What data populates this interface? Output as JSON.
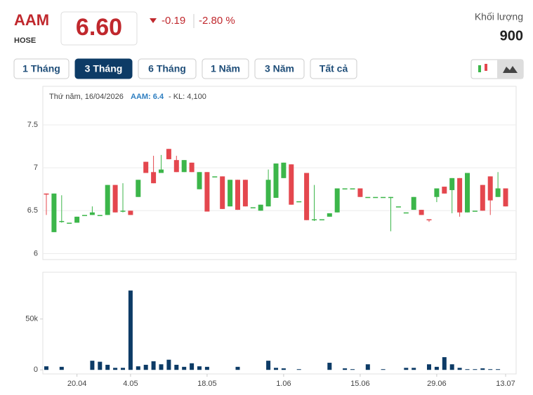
{
  "header": {
    "symbol": "AAM",
    "exchange": "HOSE",
    "price": "6.60",
    "change": "-0.19",
    "change_percent": "-2.80 %",
    "volume_label": "Khối lượng",
    "volume": "900"
  },
  "tabs": [
    "1 Tháng",
    "3 Tháng",
    "6 Tháng",
    "1 Năm",
    "3 Năm",
    "Tất cả"
  ],
  "active_tab": "3 Tháng",
  "tooltip": {
    "date": "Thứ năm, 16/04/2026",
    "symbol_price": "AAM: 6.4",
    "volume": "- KL: 4,100"
  },
  "chart_data": [
    {
      "type": "candlestick",
      "up_color": "#3cb64a",
      "down_color": "#e4474e",
      "categories": [
        null,
        null,
        null,
        null,
        "20.04",
        null,
        null,
        null,
        null,
        null,
        null,
        "4.05",
        null,
        null,
        null,
        null,
        null,
        null,
        null,
        null,
        null,
        "18.05",
        null,
        null,
        null,
        null,
        null,
        null,
        null,
        null,
        null,
        "1.06",
        null,
        null,
        null,
        null,
        null,
        null,
        null,
        null,
        null,
        "15.06",
        null,
        null,
        null,
        null,
        null,
        null,
        null,
        null,
        null,
        "29.06",
        null,
        null,
        null,
        null,
        null,
        null,
        null,
        null,
        "13.07"
      ],
      "open": [
        6.7,
        6.25,
        6.38,
        6.36,
        6.36,
        6.45,
        6.45,
        6.45,
        6.45,
        6.8,
        6.5,
        6.5,
        6.66,
        7.07,
        6.95,
        6.94,
        7.22,
        7.09,
        6.95,
        7.06,
        6.75,
        6.95,
        6.9,
        6.9,
        6.55,
        6.86,
        6.86,
        6.54,
        6.5,
        6.55,
        6.65,
        6.88,
        7.04,
        6.61,
        6.94,
        6.4,
        6.4,
        6.43,
        6.48,
        6.76,
        6.76,
        6.76,
        6.66,
        6.66,
        6.66,
        6.66,
        6.55,
        6.48,
        6.51,
        6.51,
        6.4,
        6.66,
        6.78,
        6.74,
        6.88,
        6.48,
        6.5,
        6.8,
        6.9,
        6.66,
        6.76
      ],
      "high": [
        6.7,
        6.7,
        6.68,
        6.36,
        6.43,
        6.45,
        6.55,
        6.45,
        6.8,
        6.8,
        6.82,
        6.5,
        6.86,
        7.07,
        7.14,
        7.15,
        7.22,
        7.14,
        7.09,
        7.06,
        6.95,
        6.95,
        6.9,
        6.9,
        6.86,
        6.86,
        6.86,
        6.54,
        6.57,
        6.98,
        7.05,
        7.06,
        7.04,
        6.61,
        6.94,
        6.8,
        6.4,
        6.47,
        6.76,
        6.76,
        6.76,
        6.76,
        6.66,
        6.66,
        6.66,
        6.66,
        6.55,
        6.48,
        6.66,
        6.51,
        6.4,
        6.76,
        6.78,
        6.88,
        6.88,
        6.94,
        6.5,
        6.8,
        6.9,
        6.95,
        6.76
      ],
      "low": [
        6.45,
        6.25,
        6.36,
        6.36,
        6.36,
        6.45,
        6.45,
        6.45,
        6.45,
        6.48,
        6.48,
        6.45,
        6.66,
        6.94,
        6.82,
        6.94,
        7.1,
        6.95,
        6.95,
        6.95,
        6.75,
        6.49,
        6.9,
        6.52,
        6.55,
        6.51,
        6.55,
        6.54,
        6.5,
        6.55,
        6.65,
        6.88,
        6.57,
        6.61,
        6.39,
        6.38,
        6.4,
        6.43,
        6.48,
        6.76,
        6.76,
        6.66,
        6.66,
        6.66,
        6.66,
        6.26,
        6.55,
        6.48,
        6.51,
        6.45,
        6.37,
        6.6,
        6.7,
        6.47,
        6.43,
        6.48,
        6.5,
        6.5,
        6.45,
        6.66,
        6.55
      ],
      "close": [
        6.69,
        6.7,
        6.38,
        6.36,
        6.43,
        6.45,
        6.48,
        6.45,
        6.8,
        6.48,
        6.5,
        6.45,
        6.86,
        6.94,
        6.82,
        6.98,
        7.1,
        6.95,
        7.09,
        6.95,
        6.95,
        6.49,
        6.9,
        6.52,
        6.86,
        6.51,
        6.55,
        6.54,
        6.57,
        6.86,
        7.05,
        7.06,
        6.57,
        6.61,
        6.39,
        6.4,
        6.4,
        6.47,
        6.76,
        6.76,
        6.76,
        6.66,
        6.66,
        6.66,
        6.66,
        6.66,
        6.55,
        6.48,
        6.66,
        6.45,
        6.39,
        6.76,
        6.7,
        6.88,
        6.48,
        6.94,
        6.5,
        6.5,
        6.62,
        6.76,
        6.55
      ],
      "ylim": [
        5.93,
        7.95
      ],
      "yticks": [
        6,
        6.5,
        7,
        7.5
      ],
      "grid": true
    },
    {
      "type": "bar",
      "color": "#0d3b66",
      "values": [
        3500,
        0,
        3000,
        0,
        0,
        0,
        9000,
        8000,
        5000,
        2000,
        2000,
        78000,
        3500,
        5000,
        8500,
        5500,
        10000,
        5000,
        3000,
        6500,
        3500,
        3000,
        0,
        0,
        0,
        3000,
        0,
        0,
        0,
        9000,
        2000,
        1500,
        0,
        700,
        0,
        0,
        0,
        7000,
        0,
        1500,
        700,
        0,
        5500,
        0,
        700,
        0,
        0,
        2000,
        2000,
        0,
        5500,
        3000,
        12500,
        5500,
        2000,
        700,
        700,
        1500,
        700,
        700,
        0
      ],
      "ylim": [
        -4000,
        96000
      ],
      "yticks": [
        0,
        {
          "value": 50000,
          "label": "50k"
        }
      ],
      "grid": false
    }
  ]
}
